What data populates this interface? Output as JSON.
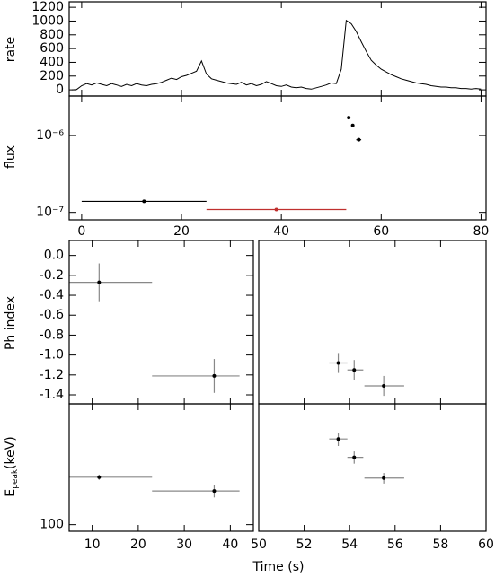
{
  "xlabel": "Time (s)",
  "chart_data": [
    {
      "type": "line",
      "ylabel": "rate",
      "xlim": [
        -2.5,
        81
      ],
      "ylim": [
        -90,
        1280
      ],
      "xticks": [
        0,
        20,
        40,
        60,
        80
      ],
      "xtick_labels": false,
      "yticks": [
        0,
        200,
        400,
        600,
        800,
        1000,
        1200
      ],
      "color": "#000000",
      "x": [
        -2,
        -1,
        0,
        1,
        2,
        3,
        4,
        5,
        6,
        7,
        8,
        9,
        10,
        11,
        12,
        13,
        14,
        15,
        16,
        17,
        18,
        19,
        20,
        21,
        22,
        23,
        24,
        25,
        26,
        27,
        28,
        29,
        30,
        31,
        32,
        33,
        34,
        35,
        36,
        37,
        38,
        39,
        40,
        41,
        42,
        43,
        44,
        45,
        46,
        47,
        48,
        49,
        50,
        51,
        52,
        53,
        54,
        55,
        56,
        57,
        58,
        59,
        60,
        61,
        62,
        63,
        64,
        65,
        66,
        67,
        68,
        69,
        70,
        71,
        72,
        73,
        74,
        75,
        76,
        77,
        78,
        79,
        80
      ],
      "values": [
        0,
        5,
        60,
        90,
        70,
        100,
        80,
        60,
        90,
        70,
        50,
        80,
        60,
        90,
        70,
        60,
        80,
        90,
        110,
        140,
        170,
        150,
        190,
        210,
        240,
        270,
        420,
        230,
        160,
        140,
        120,
        100,
        90,
        80,
        110,
        70,
        90,
        60,
        80,
        120,
        90,
        60,
        50,
        70,
        40,
        30,
        40,
        20,
        10,
        30,
        50,
        70,
        100,
        90,
        300,
        1010,
        960,
        850,
        700,
        560,
        430,
        360,
        300,
        260,
        220,
        190,
        160,
        140,
        120,
        100,
        90,
        80,
        60,
        50,
        40,
        40,
        30,
        30,
        20,
        20,
        10,
        20,
        10
      ]
    },
    {
      "type": "scatter",
      "ylabel": "flux",
      "log_y": true,
      "xlim": [
        -2.5,
        81
      ],
      "ylim": [
        8e-08,
        3.25e-06
      ],
      "xticks": [
        0,
        20,
        40,
        60,
        80
      ],
      "xtick_labels": true,
      "yticks": [
        {
          "value": 1e-07,
          "label": "10⁻⁷"
        },
        {
          "value": 1e-06,
          "label": "10⁻⁶"
        }
      ],
      "x": [
        12.5,
        39,
        53.5,
        54.3,
        55.5
      ],
      "x_low": [
        0,
        25,
        null,
        null,
        55
      ],
      "x_high": [
        25,
        53,
        null,
        null,
        56
      ],
      "values": [
        1.39e-07,
        1.09e-07,
        1.7e-06,
        1.35e-06,
        8.8e-07
      ],
      "colors": [
        "#000000",
        "#c0302f",
        "#000000",
        "#000000",
        "#000000"
      ]
    },
    {
      "type": "errorbar",
      "ylabel": "Ph index",
      "xlim": [
        5,
        45
      ],
      "ylim": [
        -1.49,
        0.15
      ],
      "xticks": [
        10,
        20,
        30,
        40
      ],
      "xtick_labels": false,
      "yticks": [
        {
          "value": 0,
          "label": "0.0"
        },
        -0.2,
        -0.4,
        -0.6,
        -0.8,
        {
          "value": -1,
          "label": "-1.0"
        },
        -1.2,
        -1.4
      ],
      "x": [
        11.5,
        36.5
      ],
      "x_low": [
        5,
        23
      ],
      "x_high": [
        23,
        42
      ],
      "values": [
        -0.27,
        -1.21
      ],
      "yerr": [
        0.19,
        0.17
      ],
      "bar_color": "#888888"
    },
    {
      "type": "errorbar",
      "xlim": [
        50,
        60
      ],
      "ylim": [
        -1.49,
        0.15
      ],
      "xticks": [
        50,
        52,
        54,
        56,
        58,
        60
      ],
      "xtick_labels": false,
      "x": [
        53.5,
        54.2,
        55.5
      ],
      "x_low": [
        53.1,
        53.9,
        54.65
      ],
      "x_high": [
        53.9,
        54.6,
        56.4
      ],
      "values": [
        -1.08,
        -1.15,
        -1.31
      ],
      "yerr": [
        0.1,
        0.1,
        0.1
      ],
      "bar_color": "#888888"
    },
    {
      "type": "errorbar",
      "ylabel_parts": [
        "E",
        "peak",
        "(keV)"
      ],
      "log_y": true,
      "xlim": [
        5,
        45
      ],
      "ylim": [
        92,
        460
      ],
      "xticks": [
        10,
        20,
        30,
        40
      ],
      "xtick_labels": true,
      "yticks": [
        100
      ],
      "x": [
        11.5,
        36.5
      ],
      "x_low": [
        5,
        23
      ],
      "x_high": [
        23,
        42
      ],
      "values": [
        182,
        153
      ],
      "yerr": [
        6,
        12
      ],
      "bar_color": "#888888"
    },
    {
      "type": "errorbar",
      "log_y": true,
      "xlim": [
        50,
        60
      ],
      "ylim": [
        92,
        460
      ],
      "xticks": [
        50,
        52,
        54,
        56,
        58,
        60
      ],
      "xtick_labels": true,
      "x": [
        53.5,
        54.2,
        55.5
      ],
      "x_low": [
        53.1,
        53.9,
        54.65
      ],
      "x_high": [
        53.9,
        54.6,
        56.4
      ],
      "values": [
        295,
        234,
        180
      ],
      "yerr": [
        25,
        18,
        12
      ],
      "bar_color": "#888888"
    }
  ]
}
